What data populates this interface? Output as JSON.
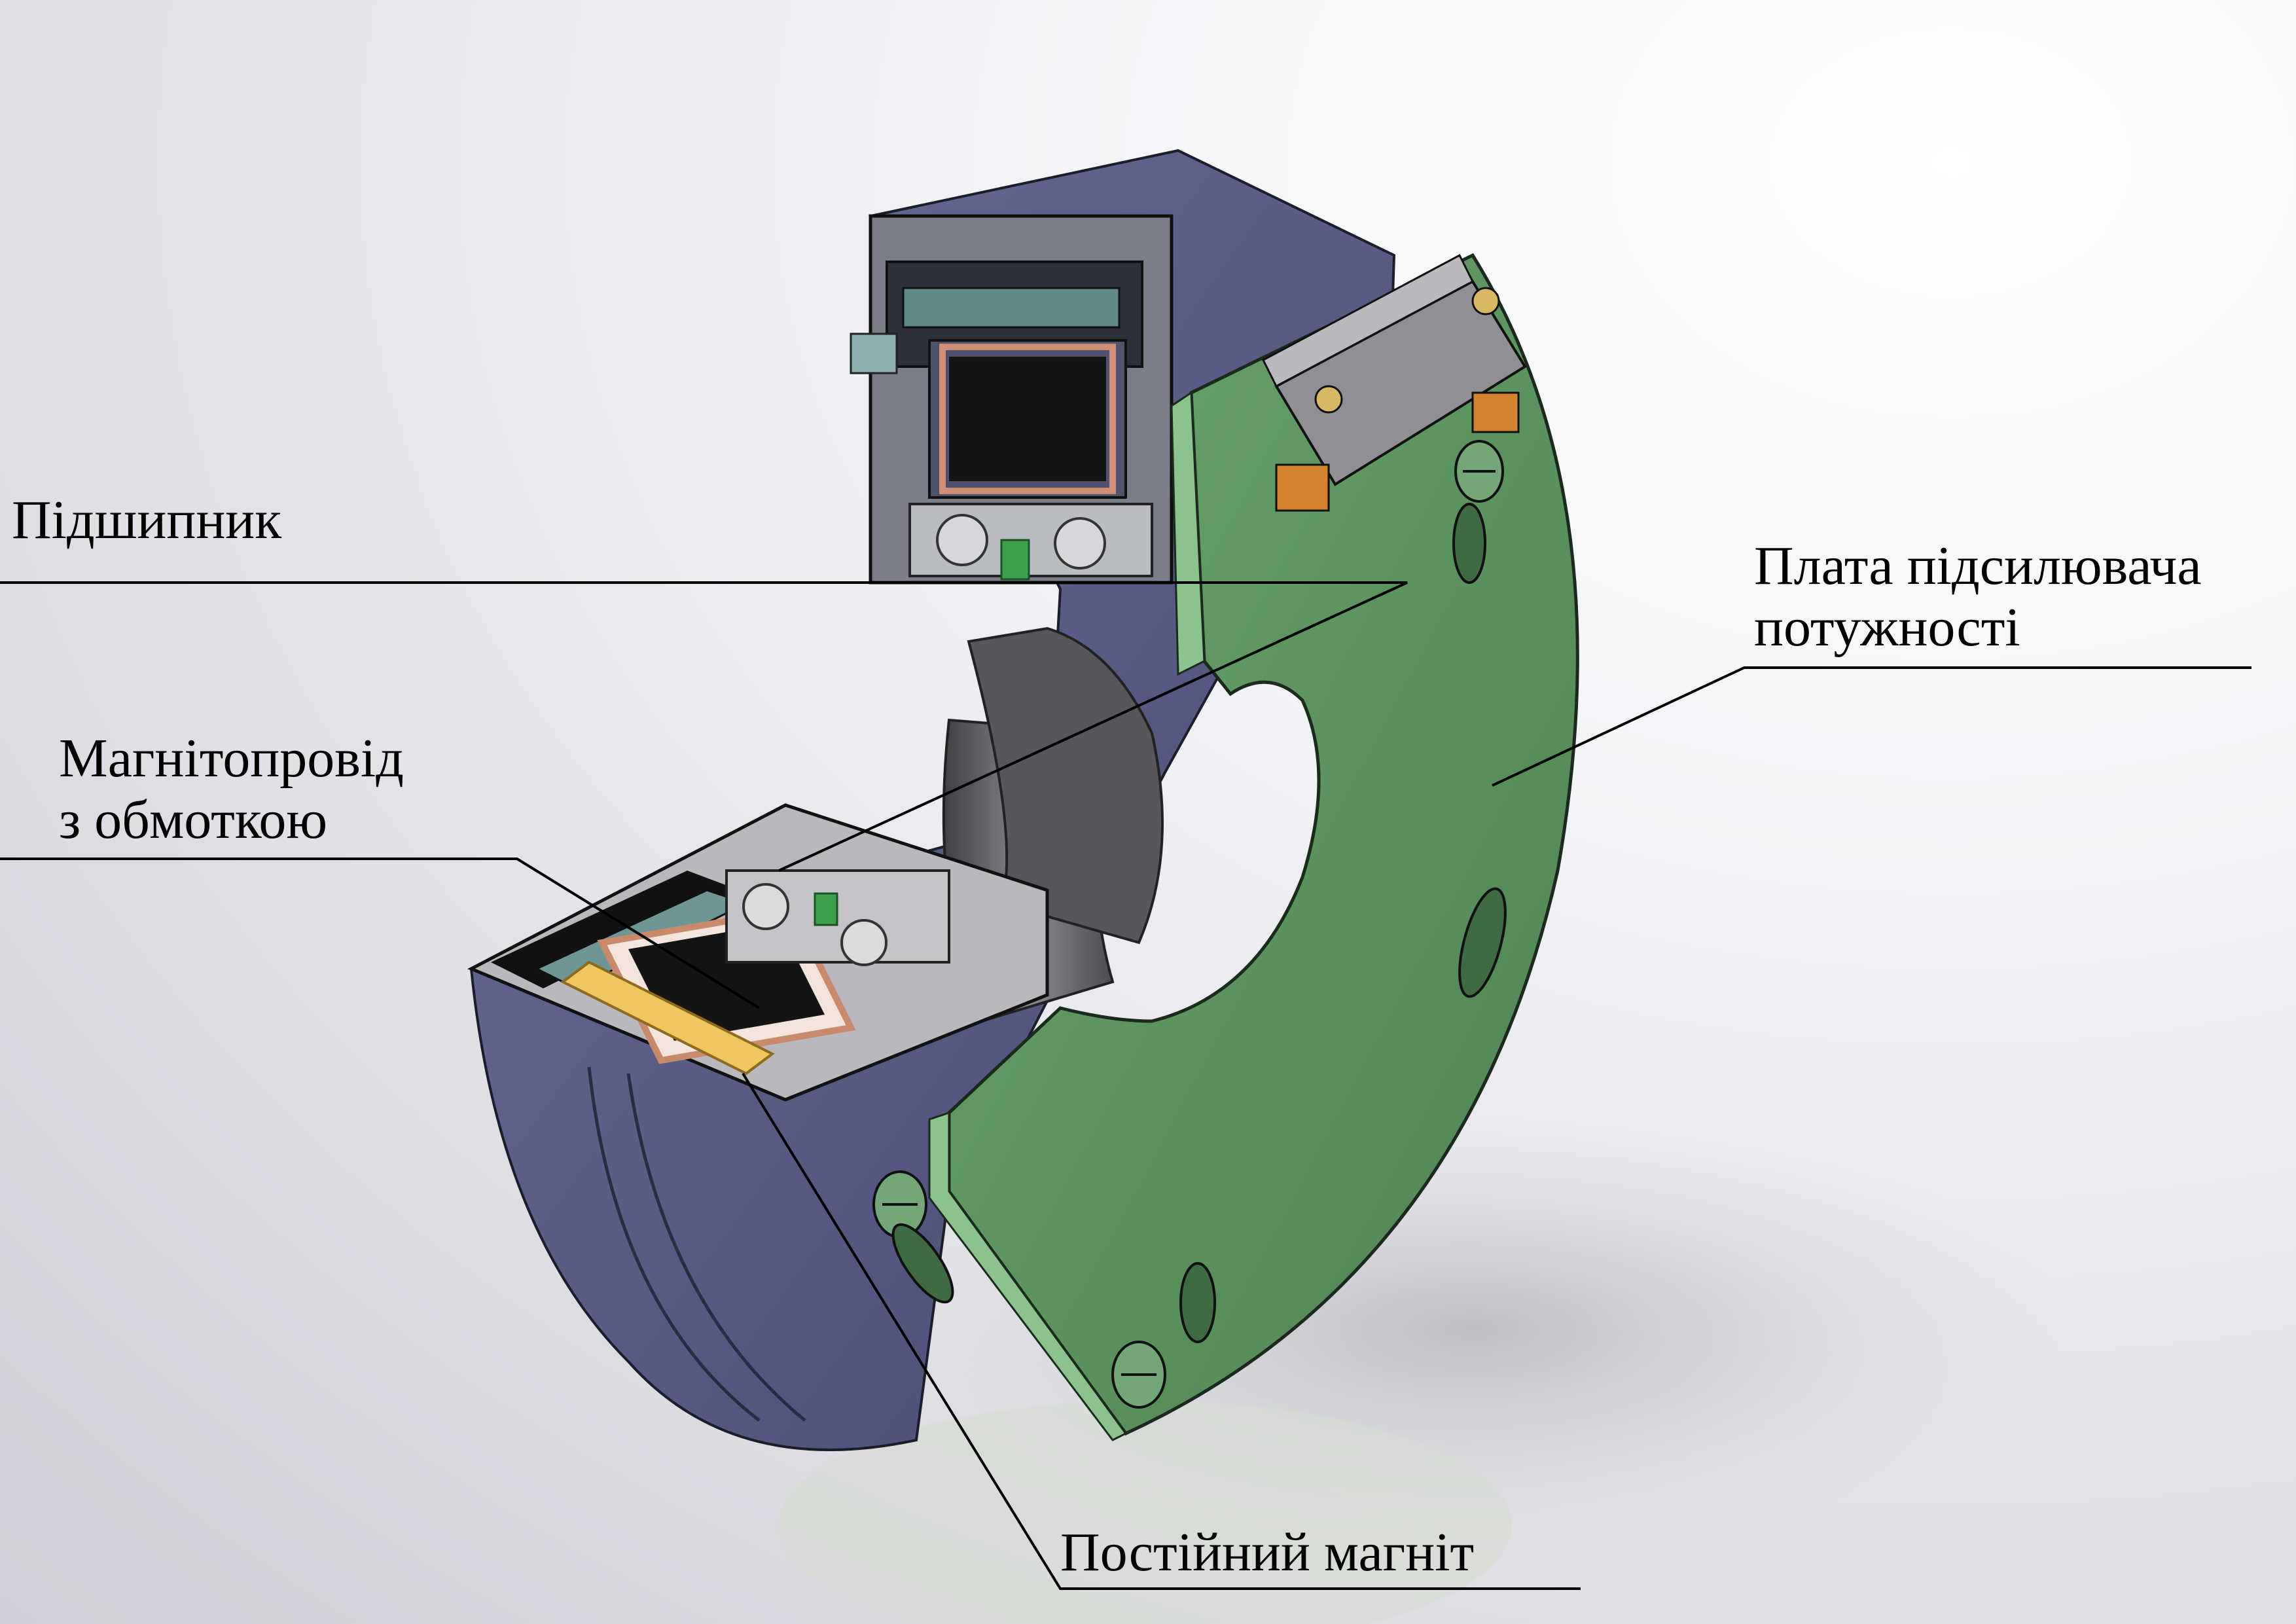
{
  "labels": {
    "bearing": "Підшипник",
    "core_line1": "Магнітопровід",
    "core_line2": "з обмоткою",
    "board_line1": "Плата підсилювача",
    "board_line2": "потужності",
    "magnet": "Постійний магніт"
  },
  "colors": {
    "housing": "#5b5f8c",
    "pcb": "#5c9460",
    "coil": "#e2a57a",
    "magnet": "#f0c65e",
    "bore": "#6e6e72",
    "bearing": "#b9bcc0"
  }
}
